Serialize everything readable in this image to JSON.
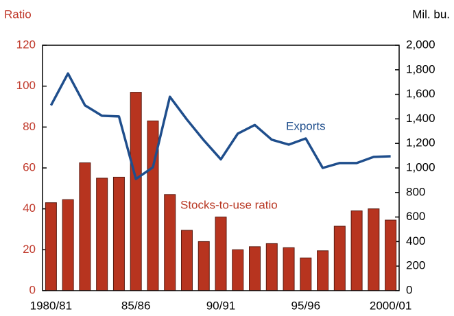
{
  "chart_data": {
    "type": "bar",
    "y_label": "Ratio",
    "y2_label": "Mil. bu.",
    "categories": [
      "1980/81",
      null,
      null,
      null,
      null,
      "85/86",
      null,
      null,
      null,
      null,
      "90/91",
      null,
      null,
      null,
      null,
      "95/96",
      null,
      null,
      null,
      null,
      "2000/01"
    ],
    "series": [
      {
        "name": "Stocks-to-use ratio",
        "type": "bar",
        "color": "#b7341f",
        "values": [
          43,
          44.5,
          62.5,
          55,
          55.5,
          97,
          83,
          47,
          29.5,
          24,
          36,
          20,
          21.5,
          23,
          21,
          16,
          19.5,
          31.5,
          39,
          40,
          34.5
        ]
      },
      {
        "name": "Exports",
        "type": "line",
        "axis": "y2",
        "color": "#1f4e8c",
        "values": [
          1510,
          1770,
          1510,
          1425,
          1420,
          910,
          1005,
          1580,
          1395,
          1225,
          1070,
          1280,
          1350,
          1230,
          1190,
          1240,
          1000,
          1040,
          1040,
          1090,
          1095
        ]
      }
    ],
    "ylim": [
      0,
      120
    ],
    "yticks": [
      0,
      20,
      40,
      60,
      80,
      100,
      120
    ],
    "y2lim": [
      0,
      2000
    ],
    "y2ticks": [
      0,
      200,
      400,
      600,
      800,
      {
        "value": 1000,
        "label": "1,000"
      },
      {
        "value": 1200,
        "label": "1,200"
      },
      {
        "value": 1400,
        "label": "1,400"
      },
      {
        "value": 1600,
        "label": "1,600"
      },
      {
        "value": 1800,
        "label": "1,800"
      },
      {
        "value": 2000,
        "label": "2,000"
      }
    ],
    "y_tick_color": "#c0392b",
    "grid": false
  }
}
